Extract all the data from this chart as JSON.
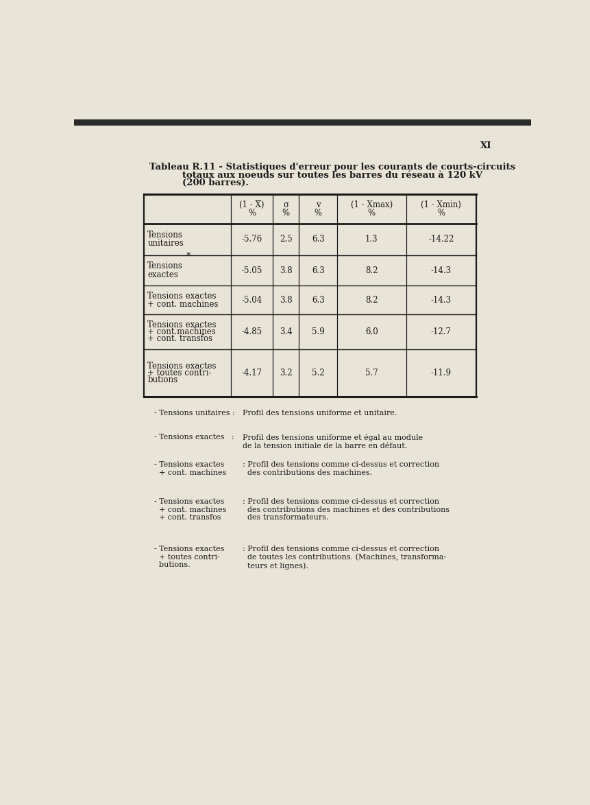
{
  "page_label": "XI",
  "title_line1": "Tableau R.11 - Statistiques d'erreur pour les courants de courts-circuits",
  "title_line2": "totaux aux noeuds sur toutes les barres du réseau à 120 kV",
  "title_line3": "(200 barres).",
  "header_row1": [
    "(1 - X̅)",
    "σ",
    "v",
    "(1 - Xmax)",
    "(1 - Xmin)"
  ],
  "header_row2": [
    "%",
    "%",
    "%",
    "%",
    "%"
  ],
  "row_labels": [
    [
      "Tensions",
      "unitaires"
    ],
    [
      "Tensions",
      "exactes"
    ],
    [
      "Tensions exactes",
      "+ cont. machines"
    ],
    [
      "Tensions exactes",
      "+ cont.machines",
      "+ cont. transfos"
    ],
    [
      "Tensions exactes",
      "+ toutes contri-",
      "butions"
    ]
  ],
  "data": [
    [
      "-5.76",
      "2.5",
      "6.3",
      "1.3",
      "-14.22"
    ],
    [
      "-5.05",
      "3.8",
      "6.3",
      "8.2",
      "-14.3"
    ],
    [
      "-5.04",
      "3.8",
      "6.3",
      "8.2",
      "-14.3"
    ],
    [
      "-4.85",
      "3.4",
      "5.9",
      "6.0",
      "-12.7"
    ],
    [
      "-4.17",
      "3.2",
      "5.2",
      "5.7",
      "-11.9"
    ]
  ],
  "fn_labels": [
    "- Tensions unitaires :",
    "- Tensions exactes   :",
    "- Tensions exactes\n  + cont. machines",
    "- Tensions exactes\n  + cont. machines\n  + cont. transfos",
    "- Tensions exactes\n  + toutes contri-\n  butions."
  ],
  "fn_descs": [
    "Profil des tensions uniforme et unitaire.",
    "Profil des tensions uniforme et égal au module\nde la tension initiale de la barre en défaut.",
    ": Profil des tensions comme ci-dessus et correction\n  des contributions des machines.",
    ": Profil des tensions comme ci-dessus et correction\n  des contributions des machines et des contributions\n  des transformateurs.",
    ": Profil des tensions comme ci-dessus et correction\n  de toutes les contributions. (Machines, transforma-\n  teurs et lignes)."
  ],
  "bg_color": "#e8e4d8",
  "text_color": "#1a1a1a",
  "font_size": 8.5,
  "title_font_size": 9.5
}
